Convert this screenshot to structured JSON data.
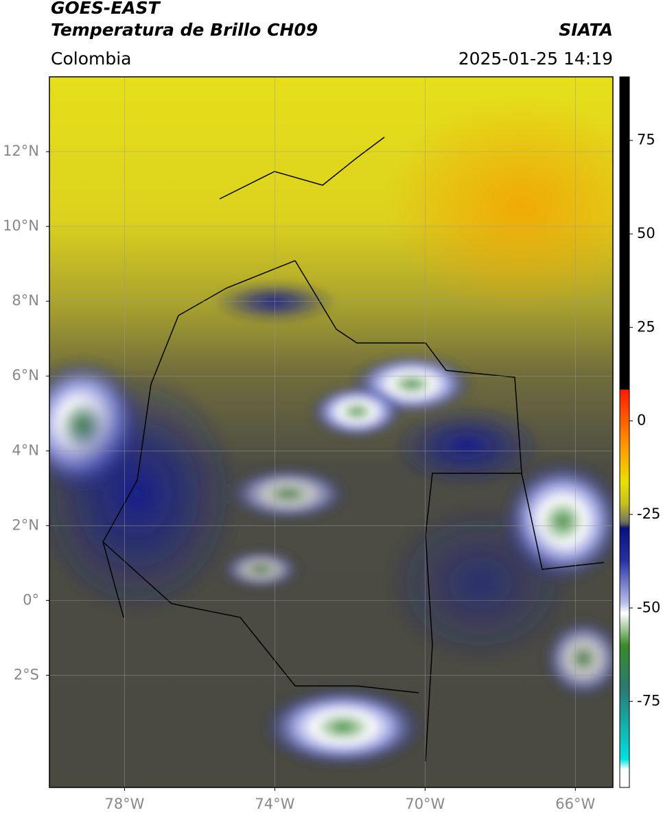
{
  "header": {
    "title": "GOES-EAST",
    "subtitle": "Temperatura de Brillo CH09",
    "source": "SIATA",
    "region": "Colombia",
    "datetime": "2025-01-25 14:19"
  },
  "map": {
    "xlim": [
      -80,
      -65
    ],
    "ylim": [
      -5,
      14
    ],
    "xticks": [
      {
        "value": -78,
        "label": "78°W"
      },
      {
        "value": -74,
        "label": "74°W"
      },
      {
        "value": -70,
        "label": "70°W"
      },
      {
        "value": -66,
        "label": "66°W"
      }
    ],
    "yticks": [
      {
        "value": 12,
        "label": "12°N"
      },
      {
        "value": 10,
        "label": "10°N"
      },
      {
        "value": 8,
        "label": "8°N"
      },
      {
        "value": 6,
        "label": "6°N"
      },
      {
        "value": 4,
        "label": "4°N"
      },
      {
        "value": 2,
        "label": "2°N"
      },
      {
        "value": 0,
        "label": "0°"
      },
      {
        "value": -2,
        "label": "2°S"
      }
    ],
    "grid": true
  },
  "colorbar": {
    "lim": [
      -98,
      92
    ],
    "ticks": [
      75,
      50,
      25,
      0,
      -25,
      -50,
      -75
    ]
  }
}
